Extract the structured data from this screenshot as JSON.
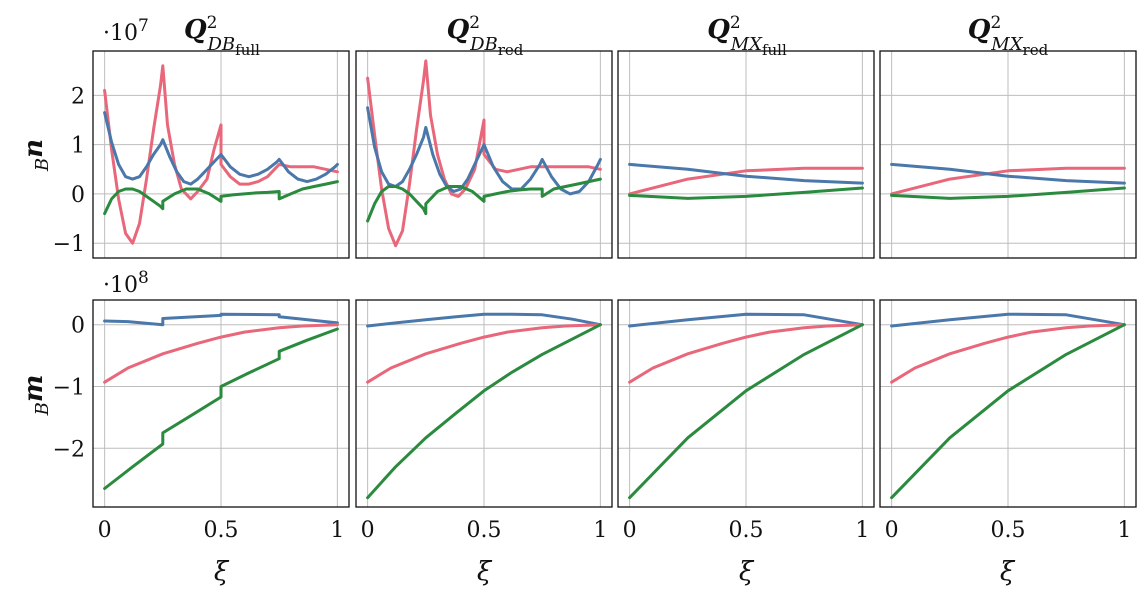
{
  "figure": {
    "columns": [
      {
        "title_main": "Q",
        "title_sup": "2",
        "title_sub": "DB",
        "title_subsub": "full"
      },
      {
        "title_main": "Q",
        "title_sup": "2",
        "title_sub": "DB",
        "title_subsub": "red"
      },
      {
        "title_main": "Q",
        "title_sup": "2",
        "title_sub": "MX",
        "title_subsub": "full"
      },
      {
        "title_main": "Q",
        "title_sup": "2",
        "title_sub": "MX",
        "title_subsub": "red"
      }
    ],
    "rows": [
      {
        "ylabel_sub": "B",
        "ylabel_main": "n",
        "exponent": "·10",
        "exponent_power": "7"
      },
      {
        "ylabel_sub": "B",
        "ylabel_main": "m",
        "exponent": "·10",
        "exponent_power": "8"
      }
    ],
    "xlabel": "ξ",
    "colors": {
      "red": "#e8677a",
      "blue": "#4a78aa",
      "green": "#2a8a3e",
      "grid": "#bdbdbd"
    }
  },
  "chart_data": [
    {
      "type": "line",
      "row": 0,
      "col": 0,
      "xlim": [
        -0.05,
        1.05
      ],
      "ylim": [
        -1.3,
        2.9
      ],
      "xticks": [
        0,
        0.5,
        1
      ],
      "xtick_labels": [
        "0",
        "0.5",
        "1"
      ],
      "yticks": [
        -1,
        0,
        1,
        2
      ],
      "ytick_labels": [
        "−1",
        "0",
        "1",
        "2"
      ],
      "series": [
        {
          "color": "red",
          "x": [
            0,
            0.03,
            0.06,
            0.09,
            0.12,
            0.15,
            0.18,
            0.21,
            0.24,
            0.25,
            0.27,
            0.3,
            0.33,
            0.37,
            0.4,
            0.44,
            0.47,
            0.5,
            0.5,
            0.54,
            0.58,
            0.62,
            0.66,
            0.7,
            0.74,
            0.75,
            0.8,
            0.85,
            0.9,
            0.95,
            1.0
          ],
          "y": [
            2.1,
            0.9,
            -0.1,
            -0.8,
            -1.0,
            -0.6,
            0.3,
            1.3,
            2.2,
            2.6,
            1.4,
            0.6,
            0.1,
            -0.1,
            0.05,
            0.3,
            0.9,
            1.4,
            0.6,
            0.35,
            0.2,
            0.2,
            0.25,
            0.35,
            0.55,
            0.6,
            0.55,
            0.55,
            0.55,
            0.5,
            0.45
          ]
        },
        {
          "color": "blue",
          "x": [
            0,
            0.03,
            0.06,
            0.09,
            0.12,
            0.15,
            0.18,
            0.21,
            0.24,
            0.25,
            0.25,
            0.28,
            0.31,
            0.34,
            0.37,
            0.4,
            0.43,
            0.46,
            0.49,
            0.5,
            0.5,
            0.54,
            0.58,
            0.62,
            0.66,
            0.7,
            0.74,
            0.75,
            0.75,
            0.79,
            0.83,
            0.87,
            0.91,
            0.95,
            0.99,
            1.0
          ],
          "y": [
            1.65,
            1.05,
            0.6,
            0.35,
            0.3,
            0.35,
            0.55,
            0.8,
            1.0,
            1.1,
            1.1,
            0.75,
            0.45,
            0.25,
            0.2,
            0.3,
            0.45,
            0.6,
            0.75,
            0.8,
            0.8,
            0.55,
            0.4,
            0.35,
            0.4,
            0.5,
            0.65,
            0.7,
            0.7,
            0.45,
            0.3,
            0.25,
            0.3,
            0.4,
            0.55,
            0.6
          ]
        },
        {
          "color": "green",
          "x": [
            0,
            0.03,
            0.06,
            0.09,
            0.12,
            0.15,
            0.18,
            0.21,
            0.24,
            0.25,
            0.25,
            0.3,
            0.35,
            0.4,
            0.45,
            0.5,
            0.5,
            0.55,
            0.6,
            0.65,
            0.7,
            0.75,
            0.75,
            0.8,
            0.85,
            0.9,
            0.95,
            1.0
          ],
          "y": [
            -0.4,
            -0.1,
            0.05,
            0.1,
            0.1,
            0.05,
            -0.05,
            -0.15,
            -0.25,
            -0.3,
            -0.15,
            0.0,
            0.1,
            0.1,
            0.0,
            -0.15,
            -0.05,
            -0.02,
            0.0,
            0.02,
            0.03,
            0.05,
            -0.1,
            0.0,
            0.1,
            0.15,
            0.2,
            0.25
          ]
        }
      ]
    },
    {
      "type": "line",
      "row": 0,
      "col": 1,
      "xlim": [
        -0.05,
        1.05
      ],
      "ylim": [
        -1.3,
        2.9
      ],
      "xticks": [
        0,
        0.5,
        1
      ],
      "xtick_labels": [
        "0",
        "0.5",
        "1"
      ],
      "yticks": [
        -1,
        0,
        1,
        2
      ],
      "ytick_labels": [
        "−1",
        "0",
        "1",
        "2"
      ],
      "series": [
        {
          "color": "red",
          "x": [
            0,
            0.03,
            0.06,
            0.09,
            0.12,
            0.15,
            0.18,
            0.21,
            0.24,
            0.25,
            0.27,
            0.3,
            0.33,
            0.36,
            0.39,
            0.42,
            0.46,
            0.5,
            0.5,
            0.55,
            0.6,
            0.65,
            0.7,
            0.75,
            0.8,
            0.85,
            0.9,
            0.95,
            1.0
          ],
          "y": [
            2.35,
            1.2,
            0.1,
            -0.7,
            -1.05,
            -0.75,
            0.2,
            1.3,
            2.3,
            2.7,
            1.6,
            0.8,
            0.3,
            0.0,
            -0.05,
            0.1,
            0.5,
            1.5,
            0.8,
            0.5,
            0.45,
            0.5,
            0.55,
            0.55,
            0.55,
            0.55,
            0.55,
            0.55,
            0.5
          ]
        },
        {
          "color": "blue",
          "x": [
            0,
            0.03,
            0.06,
            0.09,
            0.12,
            0.15,
            0.18,
            0.21,
            0.24,
            0.25,
            0.25,
            0.28,
            0.31,
            0.34,
            0.37,
            0.4,
            0.43,
            0.46,
            0.49,
            0.5,
            0.5,
            0.54,
            0.58,
            0.62,
            0.66,
            0.7,
            0.74,
            0.75,
            0.75,
            0.79,
            0.83,
            0.87,
            0.91,
            0.95,
            0.99,
            1.0
          ],
          "y": [
            1.75,
            0.95,
            0.45,
            0.2,
            0.15,
            0.25,
            0.5,
            0.8,
            1.15,
            1.35,
            1.35,
            0.8,
            0.4,
            0.15,
            0.05,
            0.1,
            0.3,
            0.6,
            0.9,
            1.0,
            1.0,
            0.55,
            0.25,
            0.1,
            0.1,
            0.3,
            0.6,
            0.7,
            0.7,
            0.35,
            0.1,
            0.0,
            0.05,
            0.25,
            0.6,
            0.7
          ]
        },
        {
          "color": "green",
          "x": [
            0,
            0.03,
            0.06,
            0.09,
            0.12,
            0.15,
            0.18,
            0.21,
            0.24,
            0.25,
            0.25,
            0.3,
            0.35,
            0.4,
            0.45,
            0.5,
            0.5,
            0.55,
            0.6,
            0.65,
            0.7,
            0.75,
            0.75,
            0.8,
            0.85,
            0.9,
            0.95,
            1.0
          ],
          "y": [
            -0.55,
            -0.2,
            0.05,
            0.15,
            0.15,
            0.1,
            0.0,
            -0.15,
            -0.3,
            -0.4,
            -0.2,
            0.05,
            0.15,
            0.15,
            0.05,
            -0.15,
            -0.05,
            0.0,
            0.05,
            0.08,
            0.1,
            0.1,
            -0.05,
            0.1,
            0.15,
            0.2,
            0.25,
            0.3
          ]
        }
      ]
    },
    {
      "type": "line",
      "row": 0,
      "col": 2,
      "xlim": [
        -0.05,
        1.05
      ],
      "ylim": [
        -1.3,
        2.9
      ],
      "xticks": [
        0,
        0.5,
        1
      ],
      "xtick_labels": [
        "0",
        "0.5",
        "1"
      ],
      "yticks": [
        -1,
        0,
        1,
        2
      ],
      "ytick_labels": [
        "−1",
        "0",
        "1",
        "2"
      ],
      "series": [
        {
          "color": "red",
          "x": [
            0,
            0.25,
            0.5,
            0.75,
            1.0
          ],
          "y": [
            0.0,
            0.3,
            0.47,
            0.52,
            0.52
          ]
        },
        {
          "color": "blue",
          "x": [
            0,
            0.25,
            0.5,
            0.75,
            1.0
          ],
          "y": [
            0.6,
            0.5,
            0.36,
            0.27,
            0.22
          ]
        },
        {
          "color": "green",
          "x": [
            0,
            0.25,
            0.5,
            0.75,
            1.0
          ],
          "y": [
            -0.03,
            -0.09,
            -0.05,
            0.03,
            0.12
          ]
        }
      ]
    },
    {
      "type": "line",
      "row": 0,
      "col": 3,
      "xlim": [
        -0.05,
        1.05
      ],
      "ylim": [
        -1.3,
        2.9
      ],
      "xticks": [
        0,
        0.5,
        1
      ],
      "xtick_labels": [
        "0",
        "0.5",
        "1"
      ],
      "yticks": [
        -1,
        0,
        1,
        2
      ],
      "ytick_labels": [
        "−1",
        "0",
        "1",
        "2"
      ],
      "series": [
        {
          "color": "red",
          "x": [
            0,
            0.25,
            0.5,
            0.75,
            1.0
          ],
          "y": [
            0.0,
            0.3,
            0.47,
            0.52,
            0.52
          ]
        },
        {
          "color": "blue",
          "x": [
            0,
            0.25,
            0.5,
            0.75,
            1.0
          ],
          "y": [
            0.6,
            0.5,
            0.36,
            0.27,
            0.22
          ]
        },
        {
          "color": "green",
          "x": [
            0,
            0.25,
            0.5,
            0.75,
            1.0
          ],
          "y": [
            -0.03,
            -0.09,
            -0.05,
            0.03,
            0.12
          ]
        }
      ]
    },
    {
      "type": "line",
      "row": 1,
      "col": 0,
      "xlim": [
        -0.05,
        1.05
      ],
      "ylim": [
        -2.95,
        0.4
      ],
      "xticks": [
        0,
        0.5,
        1
      ],
      "xtick_labels": [
        "0",
        "0.5",
        "1"
      ],
      "yticks": [
        -2,
        -1,
        0
      ],
      "ytick_labels": [
        "−2",
        "−1",
        "0"
      ],
      "series": [
        {
          "color": "blue",
          "x": [
            0,
            0.1,
            0.25,
            0.25,
            0.5,
            0.5,
            0.75,
            0.75,
            1.0
          ],
          "y": [
            0.06,
            0.05,
            0.0,
            0.1,
            0.15,
            0.17,
            0.16,
            0.13,
            0.03
          ]
        },
        {
          "color": "red",
          "x": [
            0,
            0.1,
            0.25,
            0.4,
            0.5,
            0.6,
            0.75,
            0.85,
            1.0
          ],
          "y": [
            -0.93,
            -0.7,
            -0.47,
            -0.3,
            -0.2,
            -0.12,
            -0.05,
            -0.02,
            0.0
          ]
        },
        {
          "color": "green",
          "x": [
            0,
            0.12,
            0.25,
            0.25,
            0.38,
            0.5,
            0.5,
            0.62,
            0.75,
            0.75,
            0.87,
            1.0
          ],
          "y": [
            -2.65,
            -2.3,
            -1.93,
            -1.75,
            -1.45,
            -1.17,
            -1.0,
            -0.78,
            -0.55,
            -0.43,
            -0.25,
            -0.07
          ]
        }
      ]
    },
    {
      "type": "line",
      "row": 1,
      "col": 1,
      "xlim": [
        -0.05,
        1.05
      ],
      "ylim": [
        -2.95,
        0.4
      ],
      "xticks": [
        0,
        0.5,
        1
      ],
      "xtick_labels": [
        "0",
        "0.5",
        "1"
      ],
      "yticks": [
        -2,
        -1,
        0
      ],
      "ytick_labels": [
        "−2",
        "−1",
        "0"
      ],
      "series": [
        {
          "color": "blue",
          "x": [
            0,
            0.12,
            0.25,
            0.38,
            0.5,
            0.62,
            0.75,
            0.88,
            1.0
          ],
          "y": [
            -0.02,
            0.03,
            0.08,
            0.13,
            0.17,
            0.17,
            0.16,
            0.09,
            0.0
          ]
        },
        {
          "color": "red",
          "x": [
            0,
            0.1,
            0.25,
            0.4,
            0.5,
            0.6,
            0.75,
            0.85,
            1.0
          ],
          "y": [
            -0.93,
            -0.7,
            -0.47,
            -0.3,
            -0.2,
            -0.12,
            -0.05,
            -0.02,
            0.0
          ]
        },
        {
          "color": "green",
          "x": [
            0,
            0.12,
            0.25,
            0.38,
            0.5,
            0.62,
            0.75,
            0.87,
            1.0
          ],
          "y": [
            -2.8,
            -2.3,
            -1.83,
            -1.43,
            -1.07,
            -0.77,
            -0.48,
            -0.25,
            0.0
          ]
        }
      ]
    },
    {
      "type": "line",
      "row": 1,
      "col": 2,
      "xlim": [
        -0.05,
        1.05
      ],
      "ylim": [
        -2.95,
        0.4
      ],
      "xticks": [
        0,
        0.5,
        1
      ],
      "xtick_labels": [
        "0",
        "0.5",
        "1"
      ],
      "yticks": [
        -2,
        -1,
        0
      ],
      "ytick_labels": [
        "−2",
        "−1",
        "0"
      ],
      "series": [
        {
          "color": "blue",
          "x": [
            0,
            0.25,
            0.5,
            0.75,
            1.0
          ],
          "y": [
            -0.02,
            0.08,
            0.17,
            0.16,
            0.0
          ]
        },
        {
          "color": "red",
          "x": [
            0,
            0.1,
            0.25,
            0.4,
            0.5,
            0.6,
            0.75,
            0.85,
            1.0
          ],
          "y": [
            -0.93,
            -0.7,
            -0.47,
            -0.3,
            -0.2,
            -0.12,
            -0.05,
            -0.02,
            0.0
          ]
        },
        {
          "color": "green",
          "x": [
            0,
            0.25,
            0.5,
            0.75,
            1.0
          ],
          "y": [
            -2.8,
            -1.83,
            -1.07,
            -0.48,
            0.0
          ]
        }
      ]
    },
    {
      "type": "line",
      "row": 1,
      "col": 3,
      "xlim": [
        -0.05,
        1.05
      ],
      "ylim": [
        -2.95,
        0.4
      ],
      "xticks": [
        0,
        0.5,
        1
      ],
      "xtick_labels": [
        "0",
        "0.5",
        "1"
      ],
      "yticks": [
        -2,
        -1,
        0
      ],
      "ytick_labels": [
        "−2",
        "−1",
        "0"
      ],
      "series": [
        {
          "color": "blue",
          "x": [
            0,
            0.25,
            0.5,
            0.75,
            1.0
          ],
          "y": [
            -0.02,
            0.08,
            0.17,
            0.16,
            0.0
          ]
        },
        {
          "color": "red",
          "x": [
            0,
            0.1,
            0.25,
            0.4,
            0.5,
            0.6,
            0.75,
            0.85,
            1.0
          ],
          "y": [
            -0.93,
            -0.7,
            -0.47,
            -0.3,
            -0.2,
            -0.12,
            -0.05,
            -0.02,
            0.0
          ]
        },
        {
          "color": "green",
          "x": [
            0,
            0.25,
            0.5,
            0.75,
            1.0
          ],
          "y": [
            -2.8,
            -1.83,
            -1.07,
            -0.48,
            0.0
          ]
        }
      ]
    }
  ]
}
